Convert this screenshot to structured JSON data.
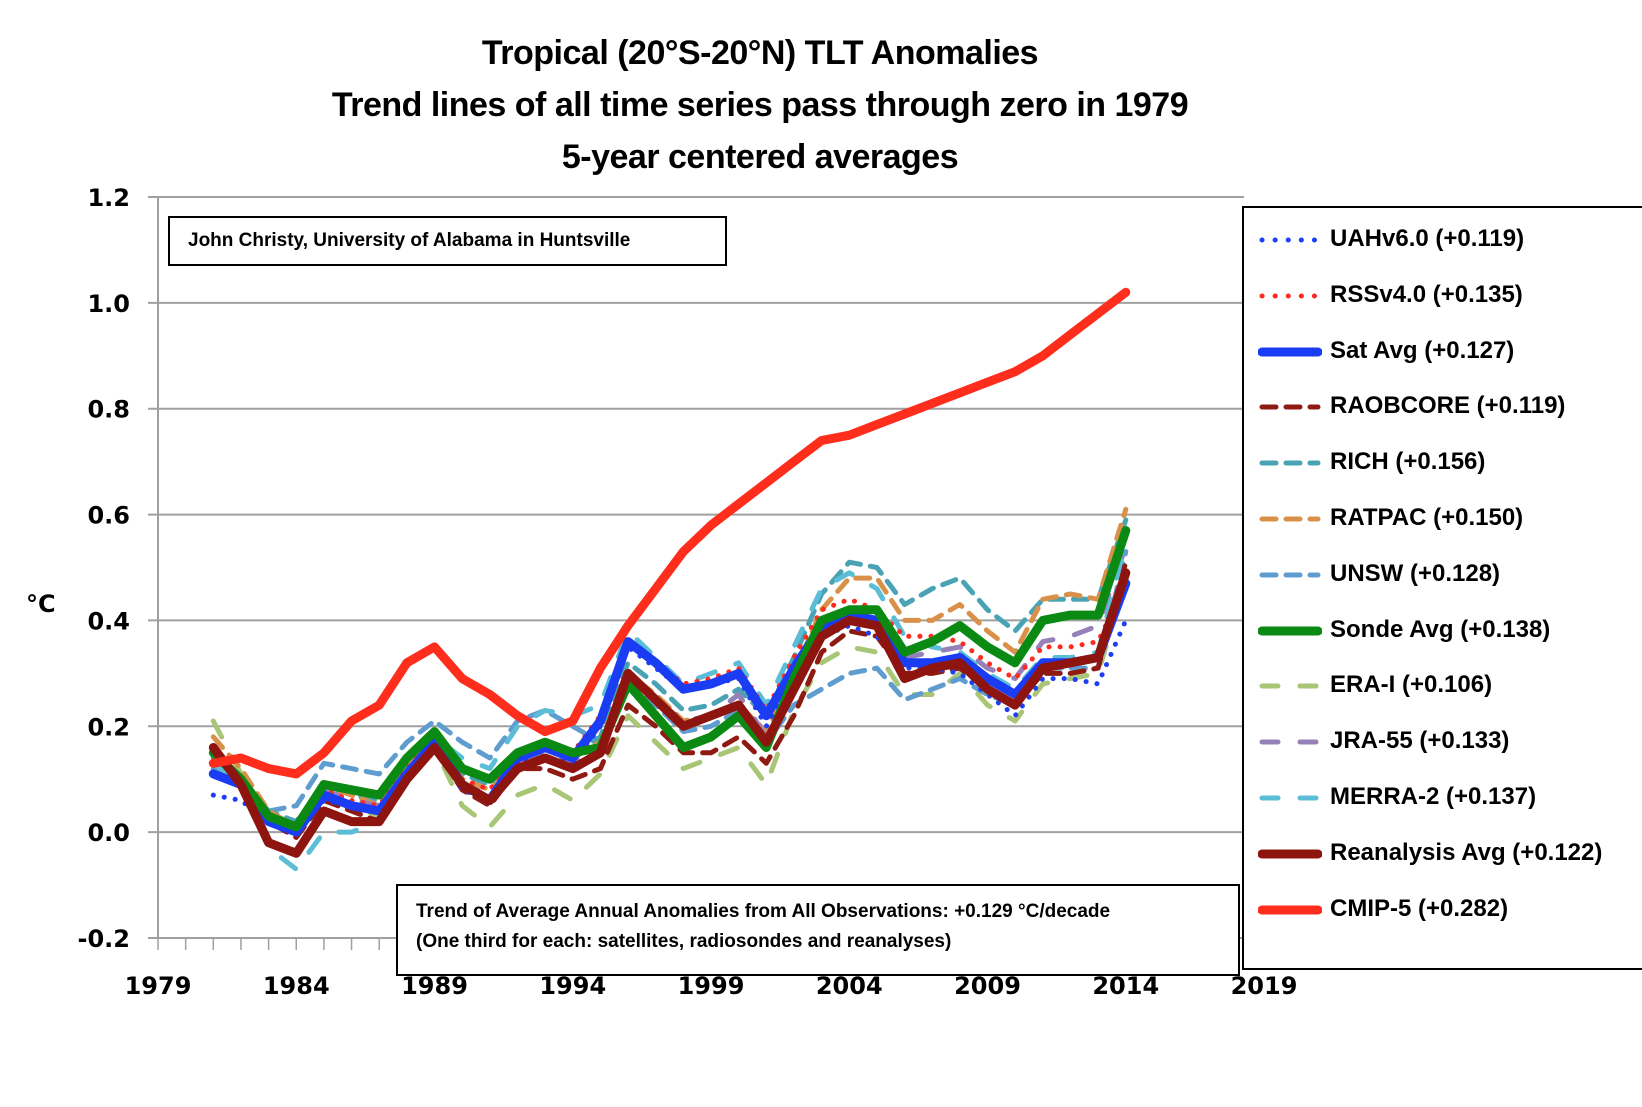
{
  "chart_data": {
    "type": "line",
    "title": "Tropical (20°S-20°N) TLT Anomalies",
    "subtitle_lines": [
      "Trend lines of all time series pass through zero in 1979",
      "5-year centered averages"
    ],
    "xlabel": "",
    "ylabel": "°C",
    "xlim": [
      1979,
      2019
    ],
    "ylim": [
      -0.2,
      1.2
    ],
    "x_ticks": [
      "1979",
      "1984",
      "1989",
      "1994",
      "1999",
      "2004",
      "2009",
      "2014",
      "2019"
    ],
    "y_ticks": [
      "-0.2",
      "0.0",
      "0.2",
      "0.4",
      "0.6",
      "0.8",
      "1.0",
      "1.2"
    ],
    "grid": "horizontal",
    "legend_position": "right",
    "annotations": [
      "John Christy, University of Alabama in Huntsville",
      "Trend of Average Annual Anomalies from All Observations: +0.129 °C/decade",
      "(One third for each: satellites, radiosondes and reanalyses)"
    ],
    "x": [
      1981,
      1982,
      1983,
      1984,
      1985,
      1986,
      1987,
      1988,
      1989,
      1990,
      1991,
      1992,
      1993,
      1994,
      1995,
      1996,
      1997,
      1998,
      1999,
      2000,
      2001,
      2002,
      2003,
      2004,
      2005,
      2006,
      2007,
      2008,
      2009,
      2010,
      2011,
      2012,
      2013,
      2014
    ],
    "series": [
      {
        "name": "UAHv6.0",
        "trend": "+0.119",
        "color": "#1f3ff5",
        "style": "dotted",
        "values": [
          0.07,
          0.06,
          0.02,
          0.0,
          0.06,
          0.05,
          0.04,
          0.1,
          0.16,
          0.08,
          0.06,
          0.13,
          0.16,
          0.13,
          0.2,
          0.35,
          0.31,
          0.27,
          0.28,
          0.29,
          0.2,
          0.29,
          0.37,
          0.39,
          0.37,
          0.31,
          0.31,
          0.3,
          0.26,
          0.22,
          0.29,
          0.29,
          0.28,
          0.4
        ]
      },
      {
        "name": "RSSv4.0",
        "trend": "+0.135",
        "color": "#ff2a1f",
        "style": "dotted",
        "values": [
          0.11,
          0.09,
          0.03,
          0.01,
          0.08,
          0.06,
          0.05,
          0.12,
          0.18,
          0.1,
          0.08,
          0.15,
          0.17,
          0.15,
          0.22,
          0.36,
          0.32,
          0.28,
          0.29,
          0.31,
          0.23,
          0.33,
          0.42,
          0.44,
          0.42,
          0.37,
          0.37,
          0.36,
          0.32,
          0.29,
          0.35,
          0.35,
          0.36,
          0.47
        ]
      },
      {
        "name": "Sat Avg",
        "trend": "+0.127",
        "color": "#1a3cf2",
        "style": "solid-thick",
        "values": [
          0.11,
          0.09,
          0.02,
          0.0,
          0.07,
          0.05,
          0.04,
          0.11,
          0.17,
          0.09,
          0.06,
          0.14,
          0.16,
          0.14,
          0.21,
          0.36,
          0.32,
          0.27,
          0.28,
          0.3,
          0.22,
          0.31,
          0.39,
          0.41,
          0.4,
          0.32,
          0.32,
          0.33,
          0.29,
          0.26,
          0.32,
          0.32,
          0.33,
          0.47
        ]
      },
      {
        "name": "RAOBCORE",
        "trend": "+0.119",
        "color": "#8f1a12",
        "style": "dashed",
        "values": [
          0.15,
          0.1,
          0.02,
          -0.01,
          0.06,
          0.04,
          0.02,
          0.1,
          0.16,
          0.08,
          0.05,
          0.12,
          0.12,
          0.1,
          0.12,
          0.24,
          0.2,
          0.15,
          0.15,
          0.18,
          0.13,
          0.22,
          0.34,
          0.38,
          0.37,
          0.3,
          0.3,
          0.31,
          0.27,
          0.24,
          0.3,
          0.3,
          0.31,
          0.51
        ]
      },
      {
        "name": "RICH",
        "trend": "+0.156",
        "color": "#4aa3b5",
        "style": "dashed",
        "values": [
          0.14,
          0.1,
          0.04,
          0.02,
          0.09,
          0.07,
          0.06,
          0.13,
          0.19,
          0.11,
          0.09,
          0.15,
          0.17,
          0.15,
          0.18,
          0.32,
          0.28,
          0.23,
          0.24,
          0.27,
          0.22,
          0.33,
          0.45,
          0.51,
          0.5,
          0.43,
          0.46,
          0.48,
          0.42,
          0.38,
          0.44,
          0.44,
          0.44,
          0.59
        ]
      },
      {
        "name": "RATPAC",
        "trend": "+0.150",
        "color": "#d9914a",
        "style": "dashed",
        "values": [
          0.18,
          0.12,
          0.04,
          0.01,
          0.09,
          0.07,
          0.05,
          0.12,
          0.18,
          0.1,
          0.08,
          0.13,
          0.16,
          0.14,
          0.17,
          0.3,
          0.26,
          0.21,
          0.22,
          0.24,
          0.19,
          0.3,
          0.42,
          0.48,
          0.48,
          0.4,
          0.4,
          0.43,
          0.38,
          0.34,
          0.44,
          0.45,
          0.44,
          0.61
        ]
      },
      {
        "name": "UNSW",
        "trend": "+0.128",
        "color": "#5f9ccf",
        "style": "dashed",
        "values": [
          0.12,
          0.09,
          0.04,
          0.05,
          0.13,
          0.12,
          0.11,
          0.17,
          0.21,
          0.17,
          0.14,
          0.21,
          0.23,
          0.2,
          0.17,
          0.28,
          0.24,
          0.19,
          0.2,
          0.23,
          0.17,
          0.24,
          0.27,
          0.3,
          0.31,
          0.25,
          0.27,
          0.29,
          0.26,
          0.24,
          0.31,
          0.31,
          0.31,
          0.53
        ]
      },
      {
        "name": "Sonde Avg",
        "trend": "+0.138",
        "color": "#0a8a12",
        "style": "solid-thick",
        "values": [
          0.15,
          0.1,
          0.03,
          0.01,
          0.09,
          0.08,
          0.07,
          0.14,
          0.19,
          0.12,
          0.1,
          0.15,
          0.17,
          0.15,
          0.16,
          0.28,
          0.22,
          0.16,
          0.18,
          0.22,
          0.16,
          0.29,
          0.4,
          0.42,
          0.42,
          0.34,
          0.36,
          0.39,
          0.35,
          0.32,
          0.4,
          0.41,
          0.41,
          0.57
        ]
      },
      {
        "name": "ERA-I",
        "trend": "+0.106",
        "color": "#a9c576",
        "style": "dashed-sparse",
        "values": [
          0.21,
          0.11,
          0.02,
          0.0,
          0.07,
          0.05,
          0.03,
          0.1,
          0.16,
          0.05,
          0.01,
          0.07,
          0.09,
          0.06,
          0.11,
          0.22,
          0.17,
          0.12,
          0.14,
          0.16,
          0.09,
          0.23,
          0.32,
          0.35,
          0.34,
          0.26,
          0.26,
          0.3,
          0.24,
          0.21,
          0.28,
          0.29,
          0.3,
          0.48
        ]
      },
      {
        "name": "JRA-55",
        "trend": "+0.133",
        "color": "#9680b8",
        "style": "dashed-sparse",
        "values": [
          0.14,
          0.1,
          0.02,
          0.01,
          0.08,
          0.06,
          0.05,
          0.12,
          0.18,
          0.09,
          0.07,
          0.13,
          0.15,
          0.13,
          0.16,
          0.29,
          0.25,
          0.21,
          0.22,
          0.26,
          0.18,
          0.29,
          0.38,
          0.4,
          0.39,
          0.33,
          0.34,
          0.35,
          0.31,
          0.29,
          0.36,
          0.37,
          0.39,
          0.54
        ]
      },
      {
        "name": "MERRA-2",
        "trend": "+0.137",
        "color": "#5bbdd6",
        "style": "dashed-sparse",
        "values": [
          0.13,
          0.09,
          -0.03,
          -0.07,
          0.0,
          0.0,
          0.02,
          0.11,
          0.18,
          0.14,
          0.12,
          0.2,
          0.23,
          0.22,
          0.24,
          0.38,
          0.33,
          0.28,
          0.3,
          0.32,
          0.24,
          0.35,
          0.46,
          0.49,
          0.46,
          0.37,
          0.35,
          0.34,
          0.3,
          0.27,
          0.33,
          0.33,
          0.34,
          0.55
        ]
      },
      {
        "name": "Reanalysis Avg",
        "trend": "+0.122",
        "color": "#8e150f",
        "style": "solid-thick",
        "values": [
          0.16,
          0.09,
          -0.02,
          -0.04,
          0.04,
          0.02,
          0.02,
          0.1,
          0.16,
          0.09,
          0.06,
          0.12,
          0.14,
          0.12,
          0.15,
          0.3,
          0.25,
          0.2,
          0.22,
          0.24,
          0.17,
          0.27,
          0.37,
          0.4,
          0.39,
          0.29,
          0.31,
          0.32,
          0.27,
          0.24,
          0.31,
          0.32,
          0.33,
          0.49
        ]
      },
      {
        "name": "CMIP-5",
        "trend": "+0.282",
        "color": "#ff2d1c",
        "style": "solid-thick",
        "values": [
          0.13,
          0.14,
          0.12,
          0.11,
          0.15,
          0.21,
          0.24,
          0.32,
          0.35,
          0.29,
          0.26,
          0.22,
          0.19,
          0.21,
          0.31,
          0.39,
          0.46,
          0.53,
          0.58,
          0.62,
          0.66,
          0.7,
          0.74,
          0.75,
          0.77,
          0.79,
          0.81,
          0.83,
          0.85,
          0.87,
          0.9,
          0.94,
          0.98,
          1.02
        ]
      }
    ]
  }
}
